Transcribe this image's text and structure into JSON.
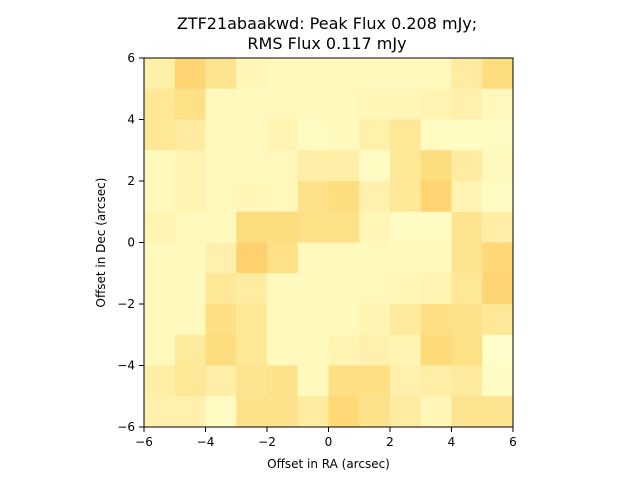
{
  "chart_data": {
    "type": "heatmap",
    "title_lines": [
      "ZTF21abaakwd: Peak Flux 0.208 mJy;",
      "RMS Flux 0.117 mJy"
    ],
    "xlabel": "Offset in RA (arcsec)",
    "ylabel": "Offset in Dec (arcsec)",
    "xlim": [
      -6,
      6
    ],
    "ylim": [
      -6,
      6
    ],
    "xticks": [
      -6,
      -4,
      -2,
      0,
      2,
      4,
      6
    ],
    "yticks": [
      -6,
      -4,
      -2,
      0,
      2,
      4,
      6
    ],
    "xtick_labels": [
      "−6",
      "−4",
      "−2",
      "0",
      "2",
      "4",
      "6"
    ],
    "ytick_labels": [
      "−6",
      "−4",
      "−2",
      "0",
      "2",
      "4",
      "6"
    ],
    "grid": false,
    "colormap": [
      "#ffffcc",
      "#fed976",
      "#feb24c"
    ],
    "cell_values_rows_top_to_bottom": [
      [
        0.2,
        0.55,
        0.35,
        0.12,
        0.08,
        0.08,
        0.08,
        0.08,
        0.08,
        0.08,
        0.25,
        0.45
      ],
      [
        0.3,
        0.4,
        0.08,
        0.08,
        0.1,
        0.08,
        0.08,
        0.12,
        0.12,
        0.15,
        0.18,
        0.1
      ],
      [
        0.3,
        0.25,
        0.08,
        0.08,
        0.15,
        0.05,
        0.08,
        0.2,
        0.3,
        0.05,
        0.05,
        0.05
      ],
      [
        0.08,
        0.15,
        0.08,
        0.08,
        0.1,
        0.22,
        0.22,
        0.05,
        0.3,
        0.45,
        0.25,
        0.08
      ],
      [
        0.08,
        0.15,
        0.08,
        0.12,
        0.1,
        0.38,
        0.45,
        0.18,
        0.3,
        0.55,
        0.15,
        0.05
      ],
      [
        0.15,
        0.08,
        0.08,
        0.45,
        0.45,
        0.4,
        0.4,
        0.12,
        0.05,
        0.05,
        0.35,
        0.22
      ],
      [
        0.08,
        0.08,
        0.18,
        0.6,
        0.4,
        0.08,
        0.08,
        0.08,
        0.08,
        0.08,
        0.35,
        0.5
      ],
      [
        0.08,
        0.08,
        0.3,
        0.25,
        0.08,
        0.08,
        0.08,
        0.1,
        0.12,
        0.15,
        0.3,
        0.55
      ],
      [
        0.08,
        0.08,
        0.42,
        0.3,
        0.08,
        0.08,
        0.08,
        0.15,
        0.28,
        0.42,
        0.38,
        0.3
      ],
      [
        0.08,
        0.28,
        0.45,
        0.3,
        0.08,
        0.08,
        0.15,
        0.18,
        0.15,
        0.48,
        0.4,
        0.02
      ],
      [
        0.22,
        0.32,
        0.22,
        0.35,
        0.38,
        0.08,
        0.42,
        0.42,
        0.18,
        0.22,
        0.28,
        0.05
      ],
      [
        0.18,
        0.18,
        0.05,
        0.38,
        0.38,
        0.25,
        0.5,
        0.38,
        0.25,
        0.12,
        0.35,
        0.35
      ]
    ]
  }
}
